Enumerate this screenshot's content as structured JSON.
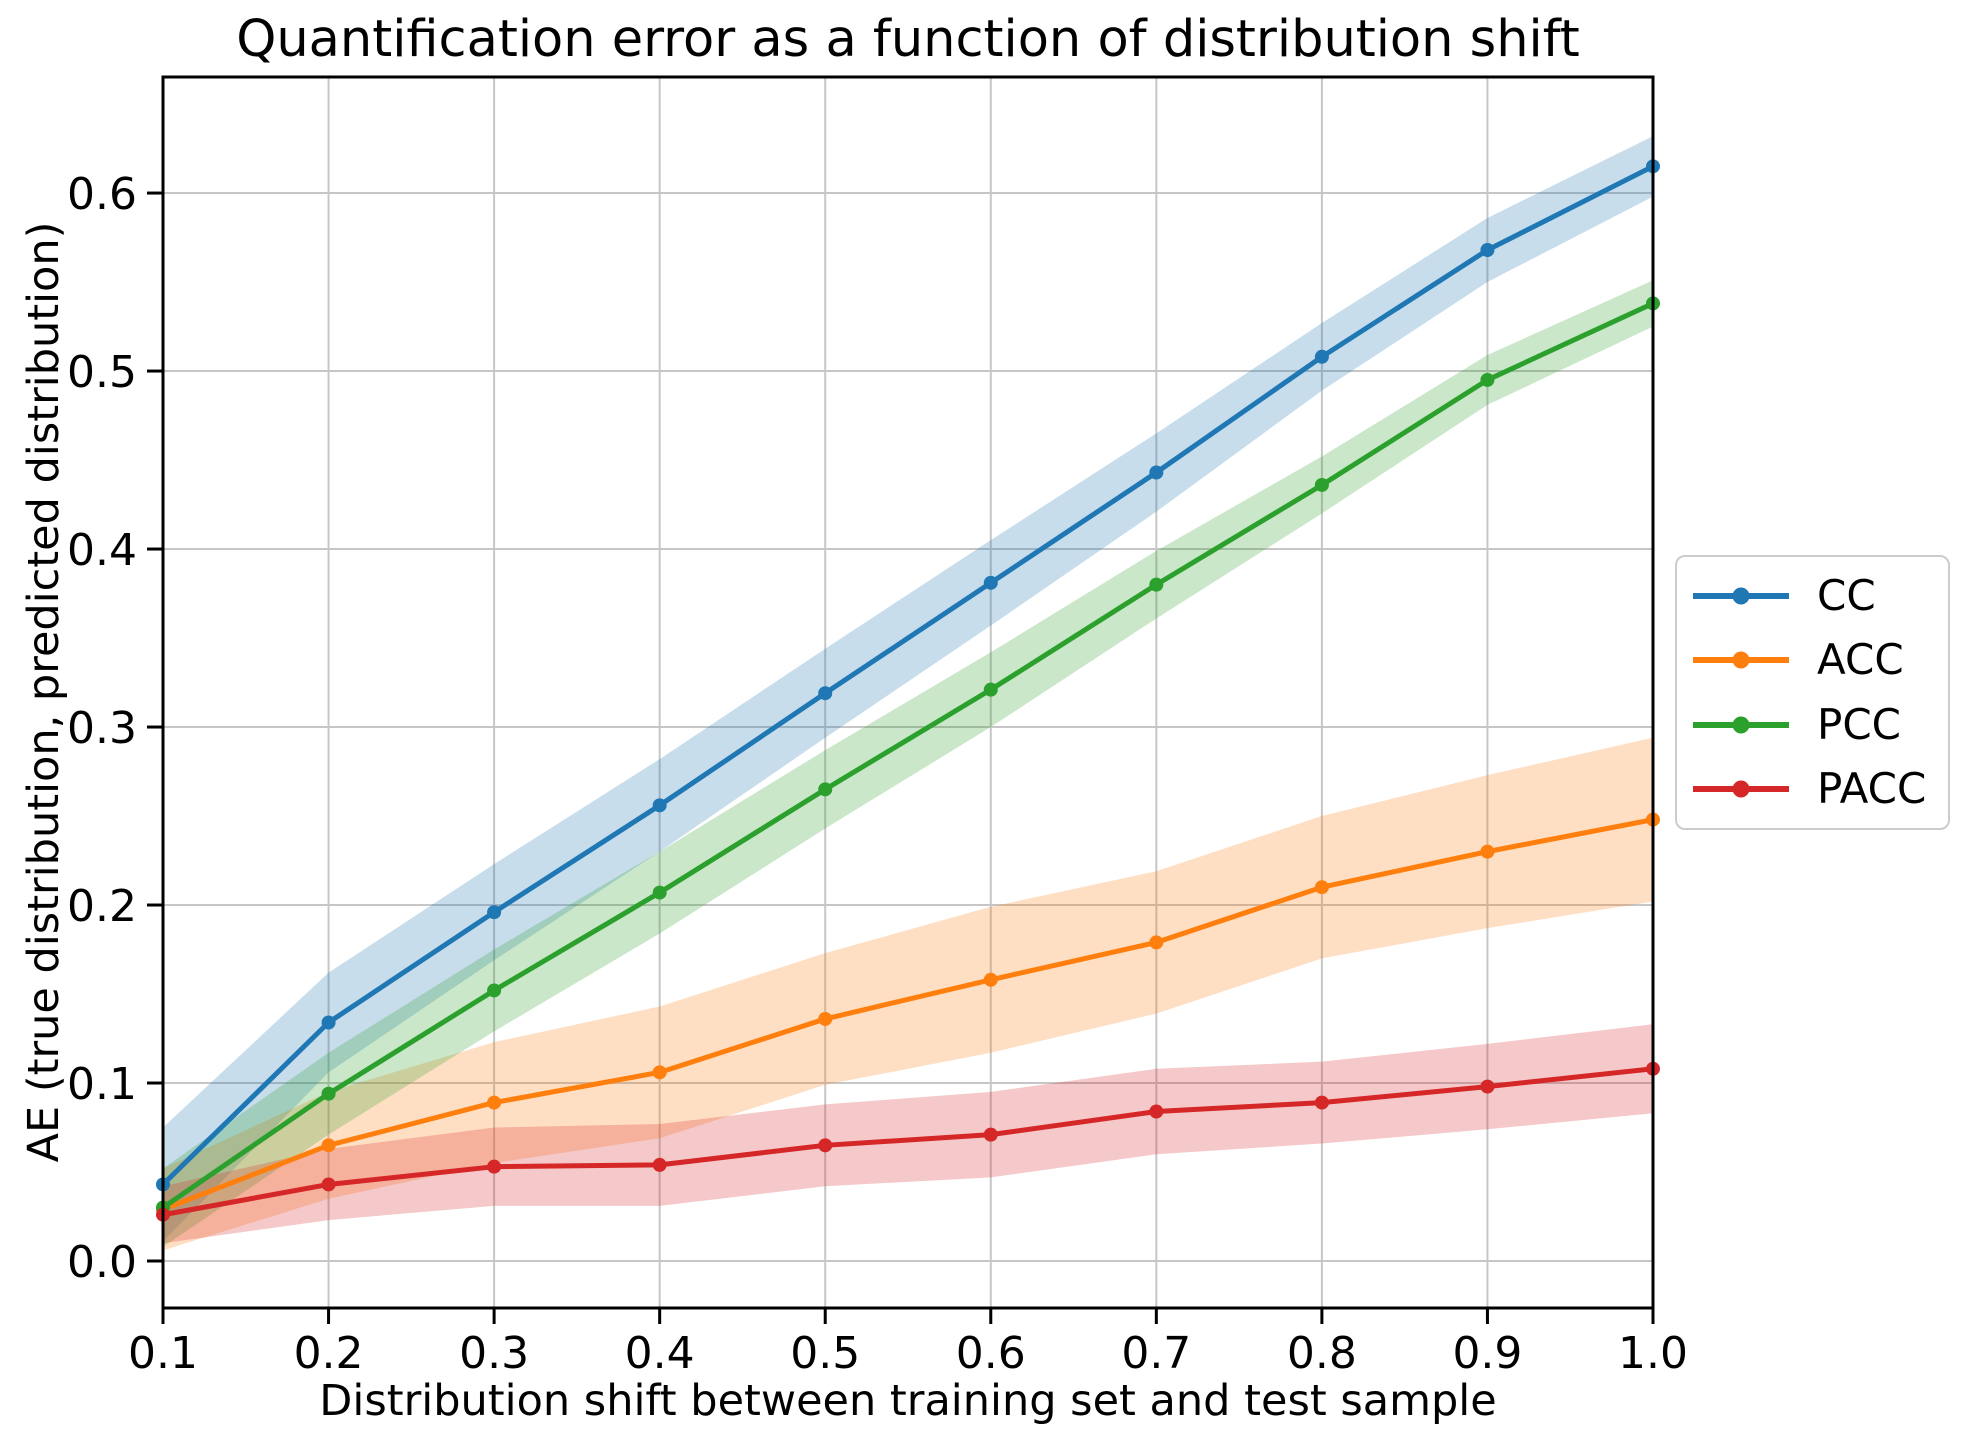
{
  "chart_data": {
    "type": "line",
    "title": "Quantification error as a function of distribution shift",
    "xlabel": "Distribution shift between training set and test sample",
    "ylabel": "AE (true distribution, predicted distribution)",
    "x": [
      0.1,
      0.2,
      0.3,
      0.4,
      0.5,
      0.6,
      0.7,
      0.8,
      0.9,
      1.0
    ],
    "x_ticks": [
      0.1,
      0.2,
      0.3,
      0.4,
      0.5,
      0.6,
      0.7,
      0.8,
      0.9,
      1.0
    ],
    "y_ticks": [
      0.0,
      0.1,
      0.2,
      0.3,
      0.4,
      0.5,
      0.6
    ],
    "xlim": [
      0.1,
      1.0
    ],
    "ylim": [
      -0.0264,
      0.6652
    ],
    "grid": true,
    "grid_color": "#c6c6c6",
    "band_alpha": 0.25,
    "legend_position": "center right",
    "series": [
      {
        "name": "CC",
        "color": "#1f77b4",
        "values": [
          0.043,
          0.134,
          0.196,
          0.256,
          0.319,
          0.381,
          0.443,
          0.508,
          0.568,
          0.615
        ],
        "band_low": [
          0.011,
          0.106,
          0.169,
          0.23,
          0.294,
          0.357,
          0.421,
          0.489,
          0.55,
          0.598
        ],
        "band_high": [
          0.075,
          0.162,
          0.223,
          0.282,
          0.344,
          0.405,
          0.465,
          0.527,
          0.586,
          0.632
        ]
      },
      {
        "name": "ACC",
        "color": "#ff7f0e",
        "values": [
          0.029,
          0.065,
          0.089,
          0.106,
          0.136,
          0.158,
          0.179,
          0.21,
          0.23,
          0.248
        ],
        "band_low": [
          0.006,
          0.035,
          0.055,
          0.069,
          0.099,
          0.117,
          0.139,
          0.17,
          0.187,
          0.202
        ],
        "band_high": [
          0.052,
          0.095,
          0.123,
          0.143,
          0.173,
          0.199,
          0.219,
          0.25,
          0.273,
          0.294
        ]
      },
      {
        "name": "PCC",
        "color": "#2ca02c",
        "values": [
          0.03,
          0.094,
          0.152,
          0.207,
          0.265,
          0.321,
          0.38,
          0.436,
          0.495,
          0.538
        ],
        "band_low": [
          0.008,
          0.071,
          0.129,
          0.184,
          0.243,
          0.3,
          0.361,
          0.42,
          0.481,
          0.525
        ],
        "band_high": [
          0.052,
          0.117,
          0.175,
          0.23,
          0.287,
          0.342,
          0.399,
          0.452,
          0.509,
          0.551
        ]
      },
      {
        "name": "PACC",
        "color": "#d62728",
        "values": [
          0.026,
          0.043,
          0.053,
          0.054,
          0.065,
          0.071,
          0.084,
          0.089,
          0.098,
          0.108
        ],
        "band_low": [
          0.01,
          0.023,
          0.031,
          0.031,
          0.042,
          0.047,
          0.06,
          0.066,
          0.074,
          0.083
        ],
        "band_high": [
          0.042,
          0.063,
          0.075,
          0.077,
          0.088,
          0.095,
          0.108,
          0.112,
          0.122,
          0.133
        ]
      }
    ]
  }
}
